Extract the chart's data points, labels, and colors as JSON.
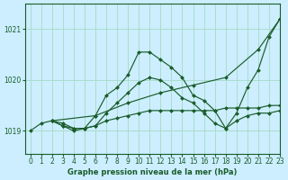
{
  "bg_color": "#cceeff",
  "grid_color": "#aaddcc",
  "line_color": "#1a5c2a",
  "marker_color": "#1a5c2a",
  "xlabel": "Graphe pression niveau de la mer (hPa)",
  "xlim": [
    -0.5,
    23
  ],
  "ylim": [
    1018.55,
    1021.5
  ],
  "yticks": [
    1019,
    1020,
    1021
  ],
  "xticks": [
    0,
    1,
    2,
    3,
    4,
    5,
    6,
    7,
    8,
    9,
    10,
    11,
    12,
    13,
    14,
    15,
    16,
    17,
    18,
    19,
    20,
    21,
    22,
    23
  ],
  "series": [
    {
      "x": [
        0,
        1,
        2,
        3,
        4,
        5,
        6,
        7,
        8,
        9,
        10,
        11,
        12,
        13,
        14,
        15,
        16,
        17,
        18,
        19,
        20,
        21,
        22,
        23
      ],
      "y": [
        1019.0,
        1019.15,
        1019.2,
        1019.1,
        1019.0,
        1019.05,
        1019.3,
        1019.7,
        1019.85,
        1020.1,
        1020.55,
        1020.55,
        1020.4,
        1020.25,
        1020.05,
        1019.7,
        1019.6,
        1019.4,
        1019.05,
        1019.35,
        1019.85,
        1020.2,
        1020.85,
        1021.2
      ]
    },
    {
      "x": [
        2,
        6,
        9,
        12,
        15,
        18,
        21,
        23
      ],
      "y": [
        1019.2,
        1019.3,
        1019.55,
        1019.75,
        1019.9,
        1020.05,
        1020.6,
        1021.2
      ]
    },
    {
      "x": [
        2,
        3,
        4,
        5,
        6,
        7,
        8,
        9,
        10,
        11,
        12,
        13,
        14,
        15,
        16,
        17,
        18,
        19,
        20,
        21,
        22,
        23
      ],
      "y": [
        1019.2,
        1019.1,
        1019.05,
        1019.05,
        1019.1,
        1019.35,
        1019.55,
        1019.75,
        1019.95,
        1020.05,
        1020.0,
        1019.85,
        1019.65,
        1019.55,
        1019.35,
        1019.15,
        1019.05,
        1019.2,
        1019.3,
        1019.35,
        1019.35,
        1019.4
      ]
    },
    {
      "x": [
        2,
        3,
        4,
        5,
        6,
        7,
        8,
        9,
        10,
        11,
        12,
        13,
        14,
        15,
        16,
        17,
        18,
        19,
        20,
        21,
        22,
        23
      ],
      "y": [
        1019.2,
        1019.15,
        1019.05,
        1019.05,
        1019.1,
        1019.2,
        1019.25,
        1019.3,
        1019.35,
        1019.4,
        1019.4,
        1019.4,
        1019.4,
        1019.4,
        1019.4,
        1019.4,
        1019.45,
        1019.45,
        1019.45,
        1019.45,
        1019.5,
        1019.5
      ]
    }
  ]
}
